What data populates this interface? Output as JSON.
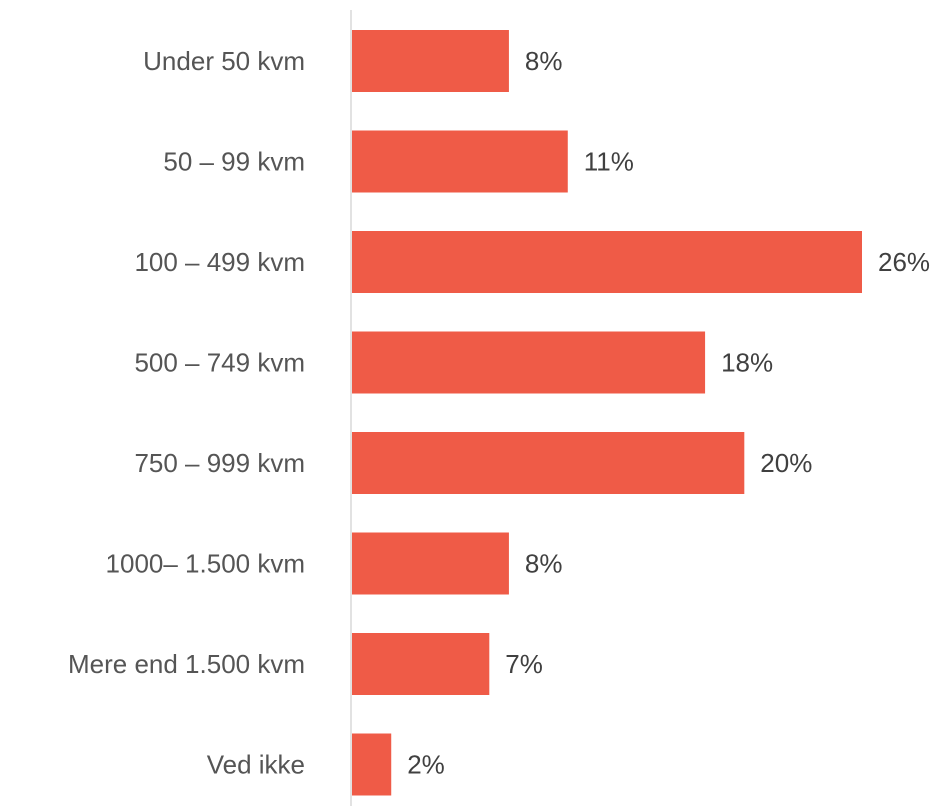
{
  "chart_data": {
    "type": "bar",
    "orientation": "horizontal",
    "categories": [
      "Under 50 kvm",
      "50 – 99 kvm",
      "100 – 499 kvm",
      "500 – 749 kvm",
      "750 – 999 kvm",
      "1000– 1.500 kvm",
      "Mere end 1.500 kvm",
      "Ved ikke"
    ],
    "values": [
      8,
      11,
      26,
      18,
      20,
      8,
      7,
      2
    ],
    "value_labels": [
      "8%",
      "11%",
      "26%",
      "18%",
      "20%",
      "8%",
      "7%",
      "2%"
    ],
    "title": "",
    "xlabel": "",
    "ylabel": "",
    "xlim": [
      0,
      26
    ],
    "grid": false,
    "legend": "none",
    "bar_color": "#EF5B47",
    "axis_color": "#D9D9D9"
  }
}
